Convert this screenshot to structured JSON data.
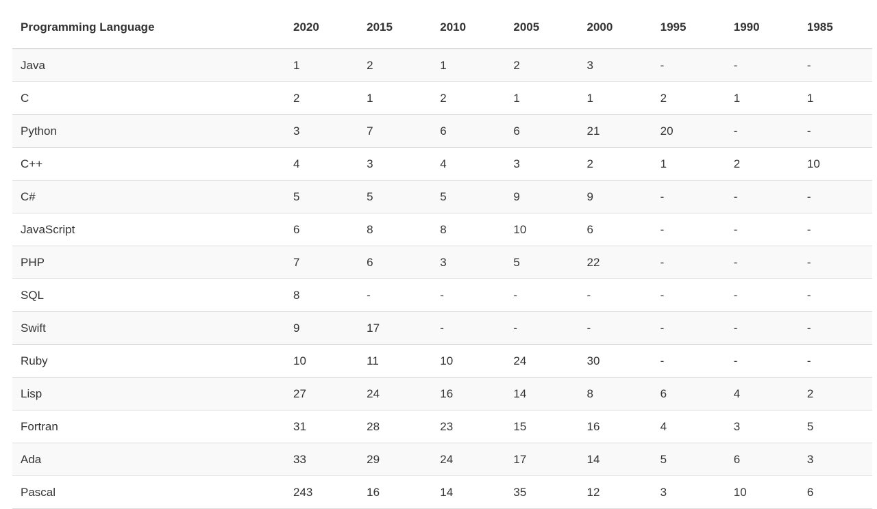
{
  "table": {
    "header": [
      "Programming Language",
      "2020",
      "2015",
      "2010",
      "2005",
      "2000",
      "1995",
      "1990",
      "1985"
    ],
    "rows": [
      [
        "Java",
        1,
        2,
        1,
        2,
        3,
        "-",
        "-",
        "-"
      ],
      [
        "C",
        2,
        1,
        2,
        1,
        1,
        2,
        1,
        1
      ],
      [
        "Python",
        3,
        7,
        6,
        6,
        21,
        20,
        "-",
        "-"
      ],
      [
        "C++",
        4,
        3,
        4,
        3,
        2,
        1,
        2,
        10
      ],
      [
        "C#",
        5,
        5,
        5,
        9,
        9,
        "-",
        "-",
        "-"
      ],
      [
        "JavaScript",
        6,
        8,
        8,
        10,
        6,
        "-",
        "-",
        "-"
      ],
      [
        "PHP",
        7,
        6,
        3,
        5,
        22,
        "-",
        "-",
        "-"
      ],
      [
        "SQL",
        8,
        "-",
        "-",
        "-",
        "-",
        "-",
        "-",
        "-"
      ],
      [
        "Swift",
        9,
        17,
        "-",
        "-",
        "-",
        "-",
        "-",
        "-"
      ],
      [
        "Ruby",
        10,
        11,
        10,
        24,
        30,
        "-",
        "-",
        "-"
      ],
      [
        "Lisp",
        27,
        24,
        16,
        14,
        8,
        6,
        4,
        2
      ],
      [
        "Fortran",
        31,
        28,
        23,
        15,
        16,
        4,
        3,
        5
      ],
      [
        "Ada",
        33,
        29,
        24,
        17,
        14,
        5,
        6,
        3
      ],
      [
        "Pascal",
        243,
        16,
        14,
        35,
        12,
        3,
        10,
        6
      ]
    ]
  }
}
